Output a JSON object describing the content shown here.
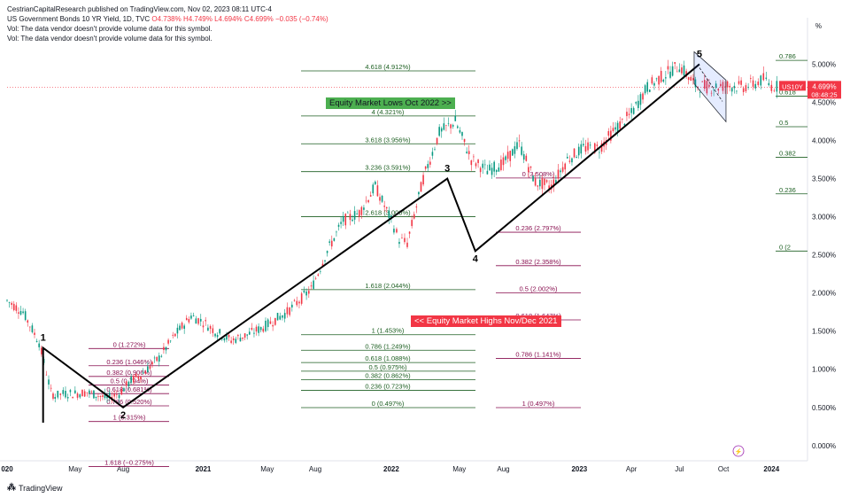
{
  "header": {
    "published": "CestrianCapitalResearch published on TradingView.com, Nov 02, 2023 08:11 UTC-4",
    "symbol_line": "US Government Bonds 10 YR Yield, 1D, TVC",
    "ohlc": "O4.738% H4.749% L4.694% C4.699% −0.035 (−0.74%)",
    "vol_note_1": "Vol: The data vendor doesn't provide volume data for this symbol.",
    "vol_note_2": "Vol: The data vendor doesn't provide volume data for this symbol."
  },
  "price_scale": {
    "unit": "%",
    "current_symbol": "US10Y",
    "current_value": "4.699%",
    "countdown": "08:48:25"
  },
  "annotations": {
    "equity_lows": "Equity Market Lows Oct 2022 >>",
    "equity_highs": "<< Equity Market Highs Nov/Dec 2021"
  },
  "footer": {
    "brand": "TradingView"
  },
  "colors": {
    "up": "#089981",
    "down": "#f23645",
    "fib_green": "#1b5e20",
    "fib_purple": "#880e4f",
    "wave": "#000000"
  },
  "chart_data": {
    "type": "line",
    "title": "US Government Bonds 10 YR Yield, 1D, TVC",
    "ylim": [
      -0.2,
      5.4
    ],
    "y_ticks": [
      "5.000%",
      "4.500%",
      "4.000%",
      "3.500%",
      "3.000%",
      "2.500%",
      "2.000%",
      "1.500%",
      "1.000%",
      "0.500%",
      "0.000%"
    ],
    "x_ticks": [
      "020",
      "May",
      "Aug",
      "2021",
      "May",
      "Aug",
      "2022",
      "May",
      "Aug",
      "2023",
      "Apr",
      "Jul",
      "Oct",
      "2024"
    ],
    "series": [
      {
        "values_t": [
          0,
          0.02,
          0.04,
          0.055,
          0.06,
          0.07,
          0.085,
          0.1,
          0.125,
          0.14,
          0.155,
          0.17,
          0.19,
          0.21,
          0.23,
          0.245,
          0.26,
          0.28,
          0.3,
          0.32,
          0.35,
          0.38,
          0.4,
          0.42,
          0.44,
          0.46,
          0.48,
          0.49,
          0.5,
          0.52,
          0.54,
          0.56,
          0.58,
          0.6,
          0.62,
          0.64,
          0.66,
          0.68,
          0.7,
          0.72,
          0.74,
          0.76,
          0.78,
          0.8,
          0.82,
          0.84,
          0.86,
          0.88,
          0.9,
          0.92,
          0.935,
          0.945,
          0.955,
          0.965
        ],
        "values": [
          1.9,
          1.75,
          1.35,
          0.7,
          0.65,
          0.68,
          0.68,
          0.7,
          0.62,
          0.68,
          0.85,
          0.95,
          1.15,
          1.45,
          1.7,
          1.62,
          1.5,
          1.38,
          1.45,
          1.55,
          1.75,
          2.05,
          2.55,
          2.95,
          3.05,
          3.4,
          2.95,
          2.7,
          2.65,
          3.5,
          4.1,
          4.25,
          3.75,
          3.6,
          3.7,
          3.95,
          3.45,
          3.4,
          3.75,
          3.9,
          3.9,
          4.15,
          4.35,
          4.7,
          4.85,
          4.98,
          4.72,
          4.7,
          4.72,
          4.7,
          4.75,
          4.8,
          4.72,
          4.699
        ]
      }
    ],
    "elliott_waves": [
      {
        "label": "1",
        "t": 0.045,
        "y": 1.28
      },
      {
        "label": "2",
        "t": 0.145,
        "y": 0.5
      },
      {
        "label": "3",
        "t": 0.55,
        "y": 3.5
      },
      {
        "label": "4",
        "t": 0.585,
        "y": 2.55
      },
      {
        "label": "5",
        "t": 0.865,
        "y": 5.0
      }
    ],
    "fib_sets": [
      {
        "color": "green",
        "levels": [
          {
            "label": "4.618 (4.912%)",
            "y": 4.912
          },
          {
            "label": "4 (4.321%)",
            "y": 4.321
          },
          {
            "label": "3.618 (3.956%)",
            "y": 3.956
          },
          {
            "label": "3.236 (3.591%)",
            "y": 3.591
          },
          {
            "label": "2.618 (3.000%)",
            "y": 3.0
          },
          {
            "label": "1.618 (2.044%)",
            "y": 2.044
          },
          {
            "label": "1 (1.453%)",
            "y": 1.453
          },
          {
            "label": "0.786 (1.249%)",
            "y": 1.249
          },
          {
            "label": "0.618 (1.088%)",
            "y": 1.088
          },
          {
            "label": "0.5 (0.975%)",
            "y": 0.975
          },
          {
            "label": "0.382 (0.862%)",
            "y": 0.862
          },
          {
            "label": "0.236 (0.723%)",
            "y": 0.723
          },
          {
            "label": "0 (0.497%)",
            "y": 0.497
          }
        ]
      },
      {
        "color": "purple",
        "levels": [
          {
            "label": "0 (1.272%)",
            "y": 1.272
          },
          {
            "label": "0.236 (1.046%)",
            "y": 1.046
          },
          {
            "label": "0.382 (0.906%)",
            "y": 0.906
          },
          {
            "label": "0.5 (0.794%)",
            "y": 0.794
          },
          {
            "label": "0.618 (0.681%)",
            "y": 0.681
          },
          {
            "label": "0.786 (0.520%)",
            "y": 0.52
          },
          {
            "label": "1 (0.315%)",
            "y": 0.315
          },
          {
            "label": "1.618 (−0.275%)",
            "y": -0.275
          }
        ]
      },
      {
        "color": "purple",
        "levels": [
          {
            "label": "0 (3.508%)",
            "y": 3.508
          },
          {
            "label": "0.236 (2.797%)",
            "y": 2.797
          },
          {
            "label": "0.382 (2.358%)",
            "y": 2.358
          },
          {
            "label": "0.5 (2.002%)",
            "y": 2.002
          },
          {
            "label": "0.618 (1.647%)",
            "y": 1.647
          },
          {
            "label": "0.786 (1.141%)",
            "y": 1.141
          },
          {
            "label": "1 (0.497%)",
            "y": 0.497
          }
        ]
      },
      {
        "color": "green",
        "levels": [
          {
            "label": "0.786",
            "y": 5.05
          },
          {
            "label": "0.618",
            "y": 4.58
          },
          {
            "label": "0.5",
            "y": 4.18
          },
          {
            "label": "0.382",
            "y": 3.78
          },
          {
            "label": "0.236",
            "y": 3.3
          },
          {
            "label": "0 (2",
            "y": 2.55
          }
        ]
      }
    ]
  }
}
